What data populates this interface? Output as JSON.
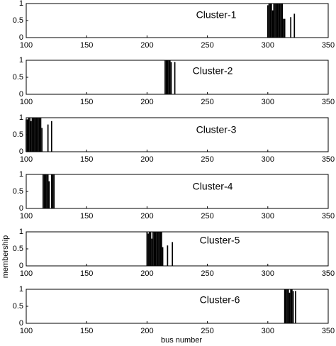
{
  "figure": {
    "ylabel": "membership",
    "xlabel": "bus number"
  },
  "chart_data": [
    {
      "type": "bar",
      "title": "Cluster-1",
      "color": "#000000",
      "xlim": [
        100,
        350
      ],
      "ylim": [
        0,
        1
      ],
      "xticks": [
        100,
        150,
        200,
        250,
        300,
        350
      ],
      "yticks": [
        0,
        0.5,
        1
      ],
      "x": [
        300,
        301,
        302,
        303,
        304,
        305,
        306,
        307,
        308,
        309,
        310,
        311,
        312,
        313,
        314,
        319,
        322
      ],
      "values": [
        0.95,
        1,
        1,
        1,
        0.8,
        1,
        1,
        1,
        1,
        1,
        1,
        1,
        1,
        0.55,
        0.55,
        0.6,
        0.7
      ]
    },
    {
      "type": "bar",
      "title": "Cluster-2",
      "color": "#000000",
      "xlim": [
        100,
        350
      ],
      "ylim": [
        0,
        1
      ],
      "xticks": [
        100,
        150,
        200,
        250,
        300,
        350
      ],
      "yticks": [
        0,
        0.5,
        1
      ],
      "x": [
        215,
        216,
        217,
        218,
        219,
        220,
        223
      ],
      "values": [
        1,
        1,
        1,
        1,
        1,
        0.95,
        0.95
      ]
    },
    {
      "type": "bar",
      "title": "Cluster-3",
      "color": "#000000",
      "xlim": [
        100,
        350
      ],
      "ylim": [
        0,
        1
      ],
      "xticks": [
        100,
        150,
        200,
        250,
        300,
        350
      ],
      "yticks": [
        0,
        0.5,
        1
      ],
      "x": [
        100,
        101,
        102,
        103,
        104,
        105,
        106,
        107,
        108,
        109,
        110,
        111,
        112,
        113,
        118,
        121
      ],
      "values": [
        0.95,
        0.95,
        1,
        1,
        0.9,
        1,
        1,
        1,
        1,
        1,
        1,
        1,
        1,
        0.7,
        0.8,
        0.9
      ]
    },
    {
      "type": "bar",
      "title": "Cluster-4",
      "color": "#000000",
      "xlim": [
        100,
        350
      ],
      "ylim": [
        0,
        1
      ],
      "xticks": [
        100,
        150,
        200,
        250,
        300,
        350
      ],
      "yticks": [
        0,
        0.5,
        1
      ],
      "x": [
        114,
        115,
        116,
        117,
        118,
        119,
        121,
        122,
        123
      ],
      "values": [
        1,
        1,
        1,
        1,
        1,
        0.8,
        1,
        1,
        1
      ]
    },
    {
      "type": "bar",
      "title": "Cluster-5",
      "color": "#000000",
      "xlim": [
        100,
        350
      ],
      "ylim": [
        0,
        1
      ],
      "xticks": [
        100,
        150,
        200,
        250,
        300,
        350
      ],
      "yticks": [
        0,
        0.5,
        1
      ],
      "x": [
        200,
        201,
        202,
        203,
        204,
        205,
        206,
        207,
        208,
        209,
        210,
        211,
        212,
        213,
        217,
        221
      ],
      "values": [
        1,
        0.95,
        1,
        1,
        0.8,
        1,
        1,
        1,
        1,
        1,
        1,
        1,
        1,
        0.55,
        0.6,
        0.7
      ]
    },
    {
      "type": "bar",
      "title": "Cluster-6",
      "color": "#000000",
      "xlim": [
        100,
        350
      ],
      "ylim": [
        0,
        1
      ],
      "xticks": [
        100,
        150,
        200,
        250,
        300,
        350
      ],
      "yticks": [
        0,
        0.5,
        1
      ],
      "x": [
        314,
        315,
        316,
        317,
        318,
        319,
        320,
        321,
        323
      ],
      "values": [
        1,
        1,
        1,
        1,
        0.9,
        1,
        1,
        0.95,
        0.95
      ]
    }
  ]
}
